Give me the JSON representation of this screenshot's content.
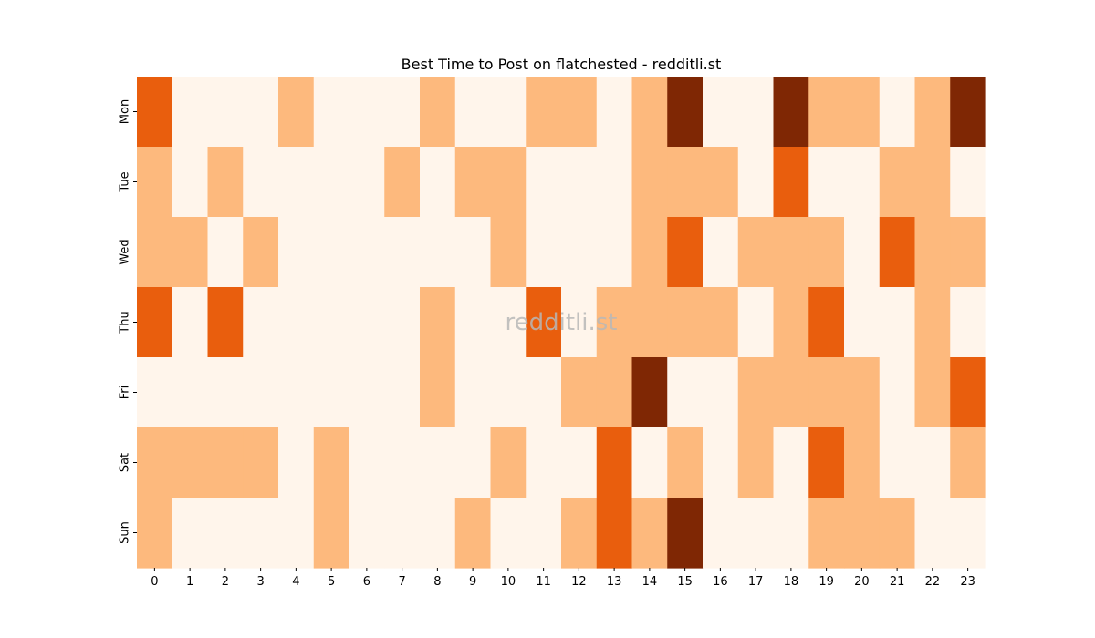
{
  "chart_data": {
    "type": "heatmap",
    "title": "Best Time to Post on flatchested - redditli.st",
    "watermark": "redditli.st",
    "xlabel": "",
    "ylabel": "",
    "x_labels": [
      "0",
      "1",
      "2",
      "3",
      "4",
      "5",
      "6",
      "7",
      "8",
      "9",
      "10",
      "11",
      "12",
      "13",
      "14",
      "15",
      "16",
      "17",
      "18",
      "19",
      "20",
      "21",
      "22",
      "23"
    ],
    "y_labels": [
      "Mon",
      "Tue",
      "Wed",
      "Thu",
      "Fri",
      "Sat",
      "Sun"
    ],
    "colorbar": false,
    "color_levels": [
      "#fff5eb",
      "#fdb97d",
      "#e95e0d",
      "#7f2704"
    ],
    "values": [
      [
        2,
        0,
        0,
        0,
        1,
        0,
        0,
        0,
        1,
        0,
        0,
        1,
        1,
        0,
        1,
        3,
        0,
        0,
        3,
        1,
        1,
        0,
        1,
        3
      ],
      [
        1,
        0,
        1,
        0,
        0,
        0,
        0,
        1,
        0,
        1,
        1,
        0,
        0,
        0,
        1,
        1,
        1,
        0,
        2,
        0,
        0,
        1,
        1,
        0
      ],
      [
        1,
        1,
        0,
        1,
        0,
        0,
        0,
        0,
        0,
        0,
        1,
        0,
        0,
        0,
        1,
        2,
        0,
        1,
        1,
        1,
        0,
        2,
        1,
        1
      ],
      [
        2,
        0,
        2,
        0,
        0,
        0,
        0,
        0,
        1,
        0,
        0,
        2,
        0,
        1,
        1,
        1,
        1,
        0,
        1,
        2,
        0,
        0,
        1,
        0
      ],
      [
        0,
        0,
        0,
        0,
        0,
        0,
        0,
        0,
        1,
        0,
        0,
        0,
        1,
        1,
        3,
        0,
        0,
        1,
        1,
        1,
        1,
        0,
        1,
        2
      ],
      [
        1,
        1,
        1,
        1,
        0,
        1,
        0,
        0,
        0,
        0,
        1,
        0,
        0,
        2,
        0,
        1,
        0,
        1,
        0,
        2,
        1,
        0,
        0,
        1
      ],
      [
        1,
        0,
        0,
        0,
        0,
        1,
        0,
        0,
        0,
        1,
        0,
        0,
        1,
        2,
        1,
        3,
        0,
        0,
        0,
        1,
        1,
        1,
        0,
        0
      ]
    ]
  }
}
